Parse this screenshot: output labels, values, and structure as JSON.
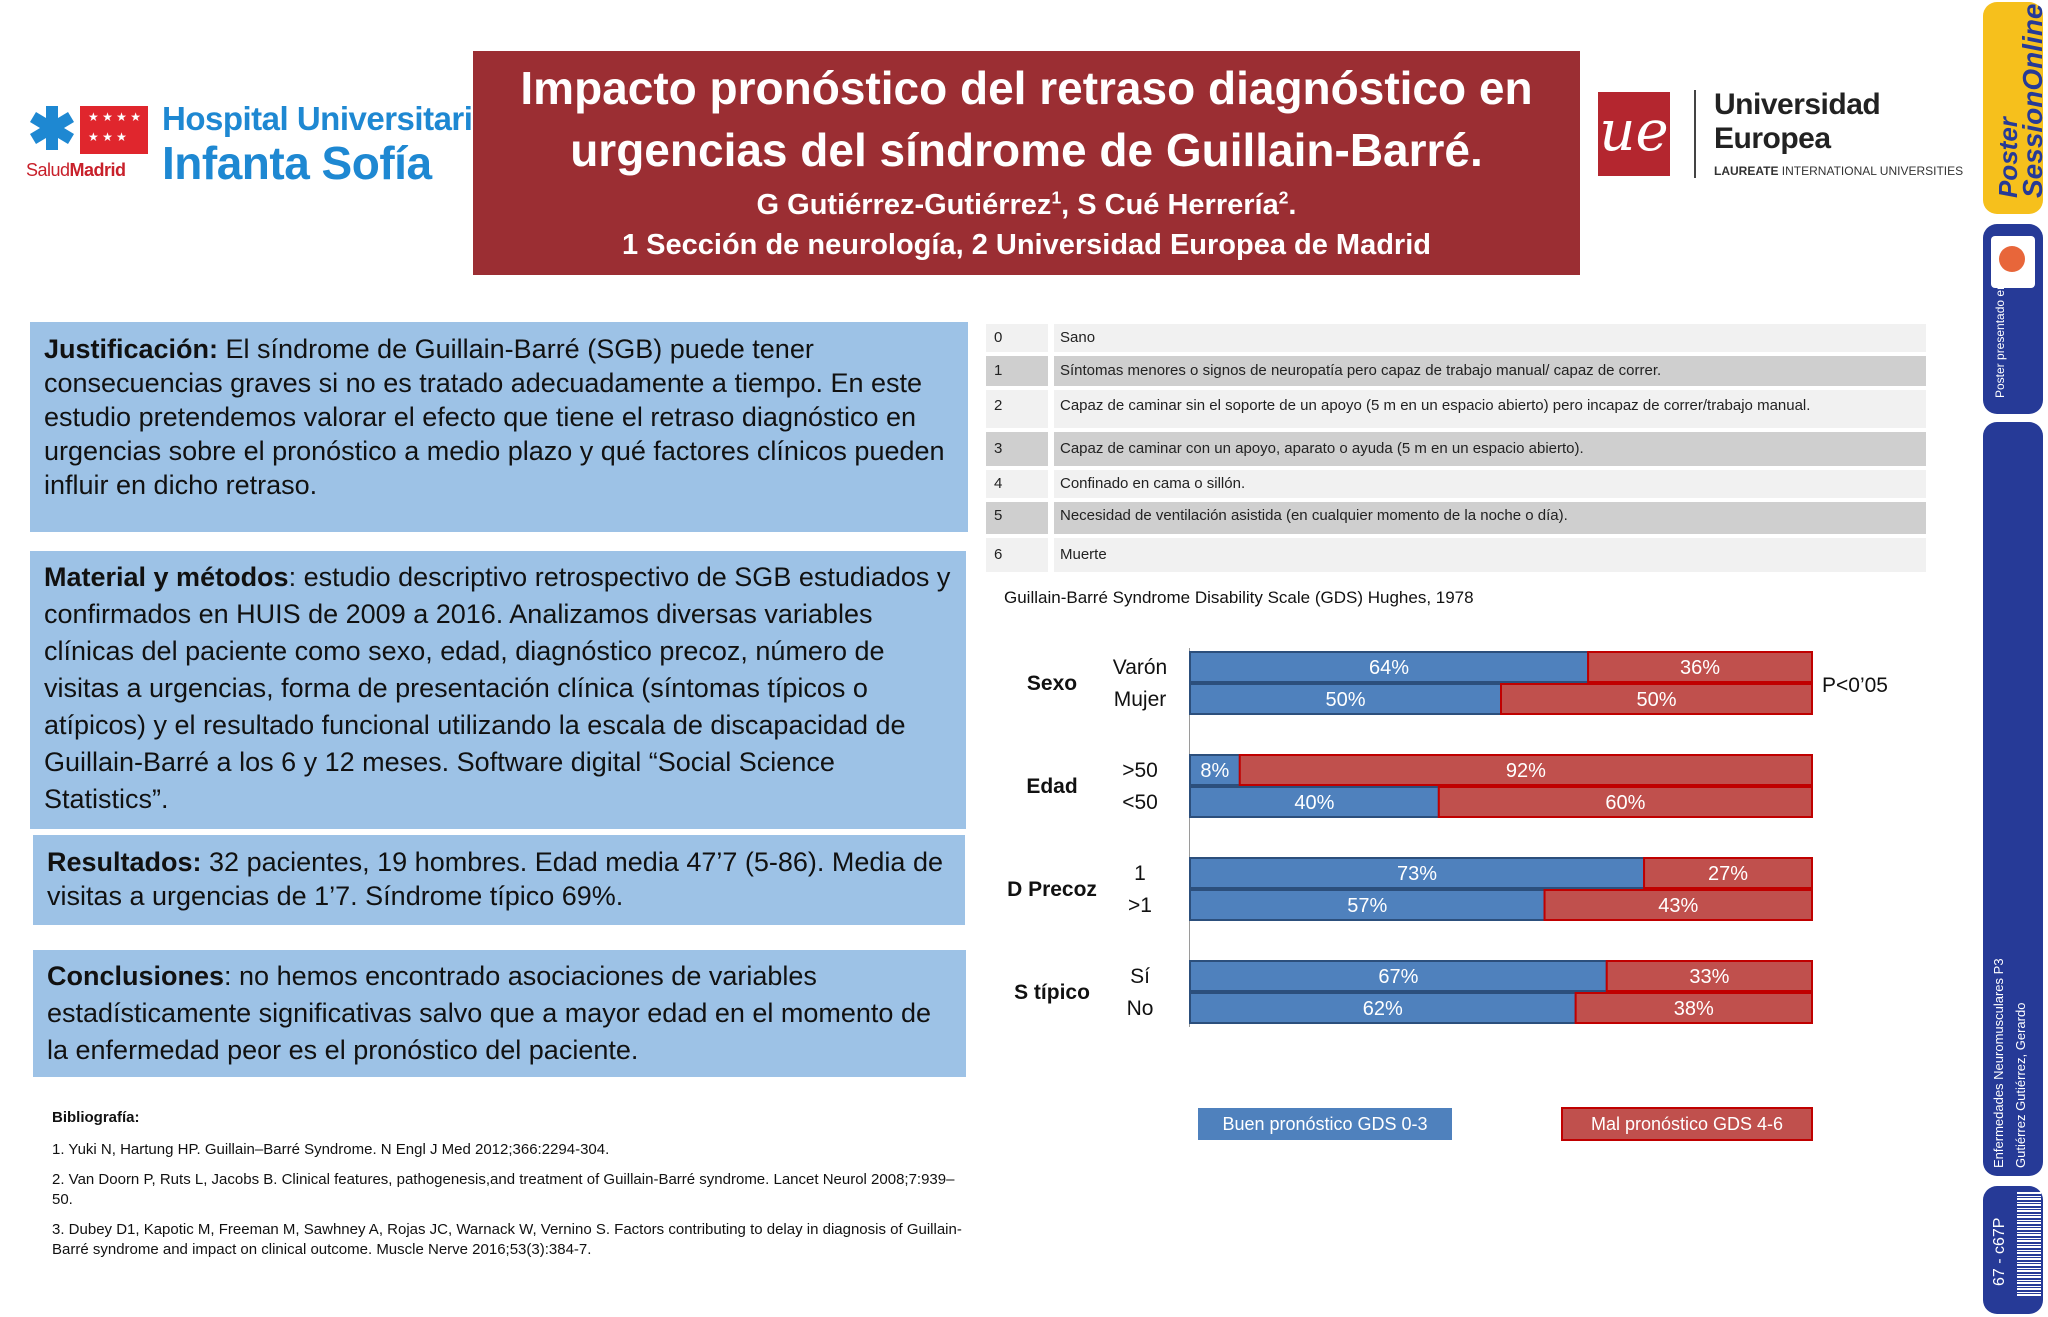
{
  "header": {
    "hospital_logo": {
      "line1": "Hospital Universitario",
      "line2": "Infanta Sofía",
      "salud_a": "Salud",
      "salud_b": "Madrid",
      "brand_color": "#1e88d2",
      "icon": "star-of-life-icon"
    },
    "title_line1": "Impacto pronóstico del retraso diagnóstico en",
    "title_line2": "urgencias del síndrome de Guillain-Barré.",
    "author1": "G Gutiérrez-Gutiérrez",
    "author1_sup": "1",
    "author_sep": ", S Cué Herrería",
    "author2_sup": "2",
    "author_end": ".",
    "affiliations": "1 Sección de neurología, 2 Universidad Europea de Madrid",
    "banner_color": "#9b2e33",
    "university_logo": {
      "mark": "ue",
      "line1": "Universidad",
      "line2": "Europea",
      "tagline_bold": "LAUREATE",
      "tagline": " INTERNATIONAL UNIVERSITIES"
    }
  },
  "sidebar": {
    "brand_a": "Poster",
    "brand_b": "SessionOnline",
    "presented": "Poster presentado en:",
    "category": "Enfermedades Neuromusculares P3",
    "author": "Gutiérrez Gutiérrez, Gerardo",
    "code": "67 - c67P",
    "colors": {
      "yellow": "#f6c01c",
      "blue": "#263a97"
    }
  },
  "panels": {
    "justificacion": {
      "heading": "Justificación:",
      "text": " El síndrome de Guillain-Barré (SGB) puede tener consecuencias graves si no es tratado adecuadamente a tiempo. En este estudio pretendemos valorar el efecto que tiene el retraso diagnóstico en urgencias sobre el pronóstico a medio plazo y qué factores clínicos pueden influir en dicho retraso."
    },
    "material": {
      "heading": "Material y métodos",
      "text": ": estudio descriptivo retrospectivo de SGB estudiados y confirmados en HUIS de 2009 a 2016. Analizamos diversas variables clínicas del paciente como sexo, edad, diagnóstico precoz, número de visitas a urgencias, forma de presentación clínica (síntomas típicos o atípicos) y el resultado funcional utilizando la escala de discapacidad de Guillain-Barré a los 6 y 12 meses. Software digital “Social Science Statistics”."
    },
    "resultados": {
      "heading": "Resultados:",
      "text": " 32 pacientes, 19 hombres. Edad media 47’7 (5-86). Media de visitas a urgencias de 1’7. Síndrome típico 69%."
    },
    "conclusiones": {
      "heading": "Conclusiones",
      "text": ": no hemos encontrado asociaciones de variables estadísticamente significativas salvo que a mayor edad en el momento de la enfermedad peor es el pronóstico del paciente."
    },
    "panel_color": "#9dc2e6"
  },
  "bibliography": {
    "heading": "Bibliografía:",
    "items": [
      "1. Yuki N, Hartung HP. Guillain–Barré Syndrome. N Engl J Med 2012;366:2294-304.",
      "2. Van Doorn P, Ruts L, Jacobs B. Clinical features, pathogenesis,and treatment of Guillain-Barré syndrome. Lancet Neurol 2008;7:939–50.",
      "3. Dubey D1, Kapotic M, Freeman M, Sawhney A, Rojas JC, Warnack W, Vernino S. Factors contributing to delay in diagnosis of Guillain-Barré syndrome and impact on clinical outcome. Muscle Nerve 2016;53(3):384-7."
    ]
  },
  "gds_table": {
    "rows": [
      {
        "score": "0",
        "desc": "Sano"
      },
      {
        "score": "1",
        "desc": "Síntomas menores o signos de neuropatía pero capaz de trabajo manual/ capaz de correr."
      },
      {
        "score": "2",
        "desc": "Capaz de caminar sin el soporte de un apoyo (5 m en un espacio abierto) pero incapaz de correr/trabajo manual."
      },
      {
        "score": "3",
        "desc": "Capaz de caminar con un apoyo, aparato o ayuda (5 m en un espacio abierto)."
      },
      {
        "score": "4",
        "desc": "Confinado en cama o sillón."
      },
      {
        "score": "5",
        "desc": "Necesidad de ventilación asistida (en cualquier momento de la noche o día)."
      },
      {
        "score": "6",
        "desc": "Muerte"
      }
    ],
    "caption": "Guillain-Barré Syndrome Disability Scale (GDS) Hughes, 1978"
  },
  "chart_data": {
    "type": "bar",
    "orientation": "horizontal",
    "stacked": true,
    "xlim": [
      0,
      100
    ],
    "groups": [
      {
        "label": "Sexo",
        "rows": [
          {
            "label": "Varón",
            "buen": 64,
            "mal": 36
          },
          {
            "label": "Mujer",
            "buen": 50,
            "mal": 50
          }
        ],
        "note": "P<0’05"
      },
      {
        "label": "Edad",
        "rows": [
          {
            "label": ">50",
            "buen": 8,
            "mal": 92
          },
          {
            "label": "<50",
            "buen": 40,
            "mal": 60
          }
        ]
      },
      {
        "label": "D Precoz",
        "rows": [
          {
            "label": "1",
            "buen": 73,
            "mal": 27
          },
          {
            "label": ">1",
            "buen": 57,
            "mal": 43
          }
        ]
      },
      {
        "label": "S típico",
        "rows": [
          {
            "label": "Sí",
            "buen": 67,
            "mal": 33
          },
          {
            "label": "No",
            "buen": 62,
            "mal": 38
          }
        ]
      }
    ],
    "series": [
      {
        "name": "Buen pronóstico GDS 0-3",
        "color": "#4f81bd",
        "border": "#2c4f7c"
      },
      {
        "name": "Mal pronóstico GDS 4-6",
        "color": "#c0504d",
        "border": "#c00000"
      }
    ],
    "grid": false,
    "legend_position": "bottom"
  }
}
